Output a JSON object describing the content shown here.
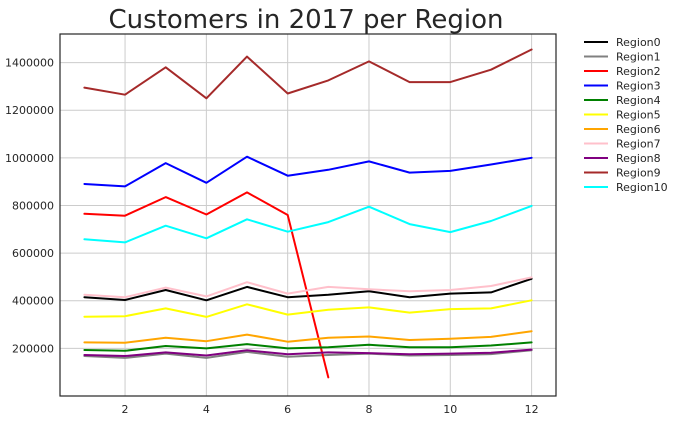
{
  "chart_data": {
    "type": "line",
    "title": "Customers in 2017 per Region",
    "xlabel": "",
    "ylabel": "",
    "x": [
      1,
      2,
      3,
      4,
      5,
      6,
      7,
      8,
      9,
      10,
      11,
      12
    ],
    "xlim": [
      0.4,
      12.6
    ],
    "ylim": [
      0,
      1520000
    ],
    "xticks": [
      2,
      4,
      6,
      8,
      10,
      12
    ],
    "yticks": [
      200000,
      400000,
      600000,
      800000,
      1000000,
      1200000,
      1400000
    ],
    "grid": true,
    "legend_position": "outside-right",
    "series": [
      {
        "name": "Region0",
        "color": "#000000",
        "x": [
          1,
          2,
          3,
          4,
          5,
          6,
          7,
          8,
          9,
          10,
          11,
          12
        ],
        "values": [
          415000,
          403000,
          445000,
          402000,
          458000,
          415000,
          425000,
          440000,
          415000,
          430000,
          435000,
          492000
        ]
      },
      {
        "name": "Region1",
        "color": "#808080",
        "x": [
          1,
          2,
          3,
          4,
          5,
          6,
          7,
          8,
          9,
          10,
          11,
          12
        ],
        "values": [
          168000,
          160000,
          178000,
          160000,
          185000,
          165000,
          172000,
          178000,
          170000,
          172000,
          176000,
          192000
        ]
      },
      {
        "name": "Region2",
        "color": "#ff0000",
        "x": [
          1,
          2,
          3,
          4,
          5,
          6,
          7
        ],
        "values": [
          765000,
          757000,
          835000,
          762000,
          855000,
          760000,
          78000
        ]
      },
      {
        "name": "Region3",
        "color": "#0000ff",
        "x": [
          1,
          2,
          3,
          4,
          5,
          6,
          7,
          8,
          9,
          10,
          11,
          12
        ],
        "values": [
          890000,
          880000,
          978000,
          895000,
          1005000,
          925000,
          950000,
          985000,
          938000,
          945000,
          972000,
          1000000
        ]
      },
      {
        "name": "Region4",
        "color": "#008000",
        "x": [
          1,
          2,
          3,
          4,
          5,
          6,
          7,
          8,
          9,
          10,
          11,
          12
        ],
        "values": [
          193000,
          190000,
          210000,
          200000,
          218000,
          200000,
          205000,
          215000,
          205000,
          205000,
          212000,
          225000
        ]
      },
      {
        "name": "Region5",
        "color": "#ffff00",
        "x": [
          1,
          2,
          3,
          4,
          5,
          6,
          7,
          8,
          9,
          10,
          11,
          12
        ],
        "values": [
          333000,
          335000,
          368000,
          332000,
          385000,
          342000,
          362000,
          372000,
          350000,
          365000,
          368000,
          402000
        ]
      },
      {
        "name": "Region6",
        "color": "#ffa500",
        "x": [
          1,
          2,
          3,
          4,
          5,
          6,
          7,
          8,
          9,
          10,
          11,
          12
        ],
        "values": [
          225000,
          224000,
          245000,
          230000,
          258000,
          228000,
          245000,
          250000,
          235000,
          240000,
          248000,
          272000
        ]
      },
      {
        "name": "Region7",
        "color": "#ffc0cb",
        "x": [
          1,
          2,
          3,
          4,
          5,
          6,
          7,
          8,
          9,
          10,
          11,
          12
        ],
        "values": [
          425000,
          415000,
          455000,
          418000,
          478000,
          430000,
          458000,
          448000,
          440000,
          445000,
          462000,
          498000
        ]
      },
      {
        "name": "Region8",
        "color": "#800080",
        "x": [
          1,
          2,
          3,
          4,
          5,
          6,
          7,
          8,
          9,
          10,
          11,
          12
        ],
        "values": [
          172000,
          168000,
          183000,
          170000,
          192000,
          175000,
          183000,
          180000,
          175000,
          178000,
          182000,
          195000
        ]
      },
      {
        "name": "Region9",
        "color": "#a52a2a",
        "x": [
          1,
          2,
          3,
          4,
          5,
          6,
          7,
          8,
          9,
          10,
          11,
          12
        ],
        "values": [
          1295000,
          1265000,
          1380000,
          1250000,
          1425000,
          1270000,
          1325000,
          1405000,
          1318000,
          1318000,
          1370000,
          1455000
        ]
      },
      {
        "name": "Region10",
        "color": "#00ffff",
        "x": [
          1,
          2,
          3,
          4,
          5,
          6,
          7,
          8,
          9,
          10,
          11,
          12
        ],
        "values": [
          658000,
          645000,
          715000,
          662000,
          742000,
          690000,
          730000,
          795000,
          722000,
          688000,
          735000,
          798000
        ]
      }
    ]
  }
}
